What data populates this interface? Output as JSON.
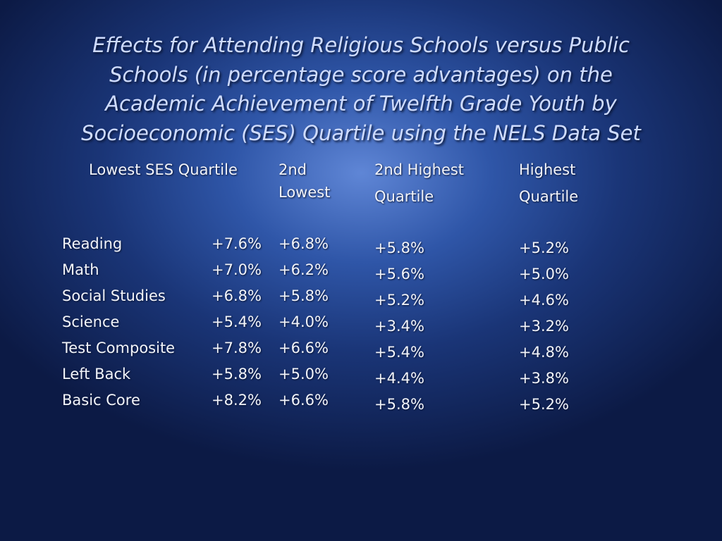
{
  "title_lines": [
    "Effects for Attending Religious Schools versus Public",
    "Schools (in percentage score advantages) on the",
    "Academic Achievement of Twelfth Grade  Youth by",
    "Socioeconomic (SES) Quartile using the NELS Data Set"
  ],
  "table": {
    "headers": [
      [
        "Lowest SES Quartile"
      ],
      [
        "2nd",
        "Lowest"
      ],
      [
        "2nd Highest",
        "Quartile"
      ],
      [
        "Highest",
        "Quartile"
      ]
    ],
    "rows": [
      [
        "Reading",
        "+7.6%",
        "+6.8%",
        "+5.8%",
        "+5.2%"
      ],
      [
        "Math",
        "+7.0%",
        "+6.2%",
        "+5.6%",
        "+5.0%"
      ],
      [
        "Social Studies",
        "+6.8%",
        "+5.8%",
        "+5.2%",
        "+4.6%"
      ],
      [
        "Science",
        "+5.4%",
        "+4.0%",
        "+3.4%",
        "+3.2%"
      ],
      [
        "Test Composite",
        "+7.8%",
        "+6.6%",
        "+5.4%",
        "+4.8%"
      ],
      [
        "Left Back",
        "+5.8%",
        "+5.0%",
        "+4.4%",
        "+3.8%"
      ],
      [
        "Basic Core",
        "+8.2%",
        "+6.6%",
        "+5.8%",
        "+5.2%"
      ]
    ]
  }
}
